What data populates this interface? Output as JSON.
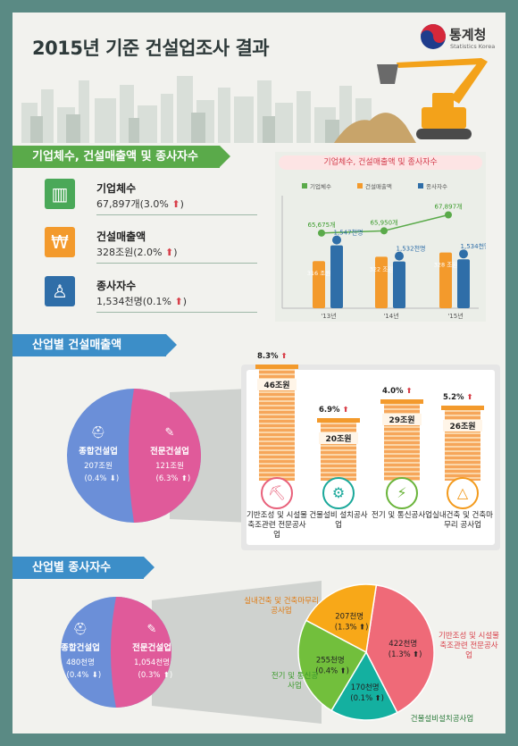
{
  "title": "2015년 기준 건설업조사 결과",
  "logo": {
    "name": "통계청",
    "sub": "Statistics Korea"
  },
  "colors": {
    "green": "#5aaa4a",
    "blue": "#3c8ec8",
    "orange": "#f39a2c",
    "navy": "#2f6ea8",
    "pink": "#e05a9a",
    "periwinkle": "#6b8fd8",
    "red_text": "#d8404a"
  },
  "section1": {
    "title": "기업체수, 건설매출액 및 종사자수",
    "items": [
      {
        "label": "기업체수",
        "value": "67,897개(3.0%",
        "icon": "building-icon",
        "color": "#4aa858"
      },
      {
        "label": "건설매출액",
        "value": "328조원(2.0%",
        "icon": "money-bag-icon",
        "color": "#f39a2c"
      },
      {
        "label": "종사자수",
        "value": "1,534천명(0.1%",
        "icon": "person-icon",
        "color": "#2f6ea8"
      }
    ],
    "close_paren": ")"
  },
  "chart_data": {
    "type": "bar",
    "title": "기업체수, 건설매출액 및 종사자수",
    "legend": [
      "기업체수",
      "건설매출액",
      "종사자수"
    ],
    "categories": [
      "'13년",
      "'14년",
      "'15년"
    ],
    "series": [
      {
        "name": "기업체수",
        "values": [
          65675,
          65950,
          67897
        ],
        "labels": [
          "65,675개",
          "65,950개",
          "67,897개"
        ]
      },
      {
        "name": "건설매출액",
        "values": [
          316,
          322,
          328
        ],
        "labels": [
          "316\n조원",
          "322\n조원",
          "328\n조원"
        ]
      },
      {
        "name": "종사자수",
        "values": [
          1547,
          1532,
          1534
        ],
        "labels": [
          "1,547천명",
          "1,532천명",
          "1,534천명"
        ]
      }
    ]
  },
  "section2": {
    "title": "산업별 건설매출액",
    "pie": [
      {
        "label": "종합건설업",
        "value": "207조원",
        "pct": "(0.4%",
        "icon": "hardhat-icon"
      },
      {
        "label": "전문건설업",
        "value": "121조원",
        "pct": "(6.3%",
        "icon": "wrench-icon"
      }
    ],
    "bars": [
      {
        "pct": "8.3%",
        "value": "46조원",
        "amount": 46,
        "name": "기반조성 및 시설물 축조관련 전문공사업",
        "color": "#e8607a",
        "icon": "excavator-icon"
      },
      {
        "pct": "6.9%",
        "value": "20조원",
        "amount": 20,
        "name": "건물설비 설치공사업",
        "color": "#1aa89a",
        "icon": "gear-icon"
      },
      {
        "pct": "4.0%",
        "value": "29조원",
        "amount": 29,
        "name": "전기 및 통신공사업",
        "color": "#6ab43a",
        "icon": "power-tower-icon"
      },
      {
        "pct": "5.2%",
        "value": "26조원",
        "amount": 26,
        "name": "실내건축 및 건축마무리 공사업",
        "color": "#f39a1c",
        "icon": "ruler-icon"
      }
    ]
  },
  "section3": {
    "title": "산업별 종사자수",
    "pie": [
      {
        "label": "종합건설업",
        "value": "480천명",
        "pct": "(0.4%",
        "icon": "hardhat-icon"
      },
      {
        "label": "전문건설업",
        "value": "1,054천명",
        "pct": "(0.3%",
        "icon": "wrench-icon"
      }
    ],
    "segments": [
      {
        "name": "기반조성 및 시설물 축조관련 전문공사업",
        "value": "422천명",
        "pct": "(1.3%",
        "color": "#ef6a78",
        "share": 422
      },
      {
        "name": "건물설비설치공사업",
        "value": "170천명",
        "pct": "(0.1%",
        "color": "#14b0a0",
        "share": 170
      },
      {
        "name": "전기 및 통신공사업",
        "value": "255천명",
        "pct": "(0.4%",
        "color": "#72bf3c",
        "share": 255
      },
      {
        "name": "실내건축 및 건축마무리공사업",
        "value": "207천명",
        "pct": "(1.3%",
        "color": "#f8a818",
        "share": 207
      }
    ]
  }
}
